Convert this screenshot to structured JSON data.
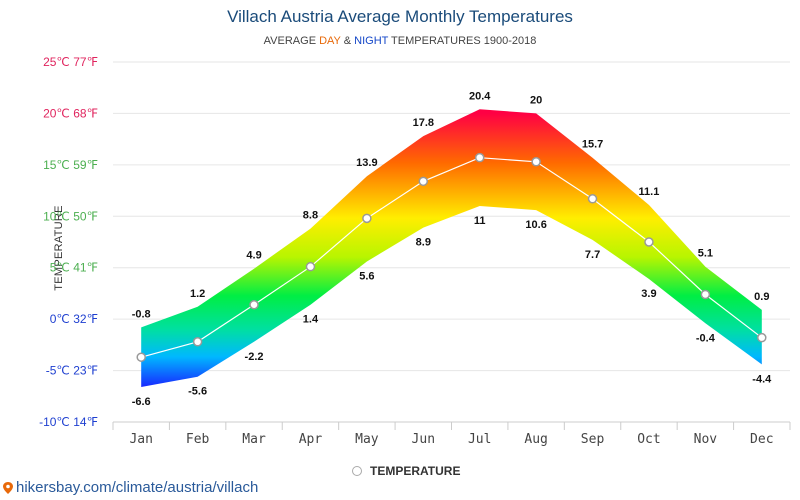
{
  "header": {
    "title": "Villach Austria Average Monthly Temperatures",
    "subtitle_prefix": "AVERAGE ",
    "subtitle_day": "DAY",
    "subtitle_amp": " & ",
    "subtitle_night": "NIGHT",
    "subtitle_suffix": " TEMPERATURES 1900-2018"
  },
  "legend": {
    "label": "TEMPERATURE"
  },
  "footer": {
    "source": "hikersbay.com/climate/austria/villach"
  },
  "chart_data": {
    "type": "area",
    "title": "Villach Austria Average Monthly Temperatures",
    "subtitle": "AVERAGE DAY & NIGHT TEMPERATURES 1900-2018",
    "ylabel": "TEMPERATURE",
    "xlabel": "",
    "categories": [
      "Jan",
      "Feb",
      "Mar",
      "Apr",
      "May",
      "Jun",
      "Jul",
      "Aug",
      "Sep",
      "Oct",
      "Nov",
      "Dec"
    ],
    "ylim": [
      -10,
      25
    ],
    "yticks": [
      {
        "c": 25,
        "label": "25℃ 77℉",
        "color": "#e0245e"
      },
      {
        "c": 20,
        "label": "20℃ 68℉",
        "color": "#e0245e"
      },
      {
        "c": 15,
        "label": "15℃ 59℉",
        "color": "#4caf50"
      },
      {
        "c": 10,
        "label": "10℃ 50℉",
        "color": "#4caf50"
      },
      {
        "c": 5,
        "label": "5℃ 41℉",
        "color": "#4caf50"
      },
      {
        "c": 0,
        "label": "0℃ 32℉",
        "color": "#1e3fd0"
      },
      {
        "c": -5,
        "label": "-5℃ 23℉",
        "color": "#1e3fd0"
      },
      {
        "c": -10,
        "label": "-10℃ 14℉",
        "color": "#1e3fd0"
      }
    ],
    "series": [
      {
        "name": "DAY",
        "values": [
          -0.8,
          1.2,
          4.9,
          8.8,
          13.9,
          17.8,
          20.4,
          20,
          15.7,
          11.1,
          5.1,
          0.9
        ]
      },
      {
        "name": "NIGHT",
        "values": [
          -6.6,
          -5.6,
          -2.2,
          1.4,
          5.6,
          8.9,
          11,
          10.6,
          7.7,
          3.9,
          -0.4,
          -4.4
        ]
      },
      {
        "name": "TEMPERATURE",
        "values": [
          -3.7,
          -2.2,
          1.4,
          5.1,
          9.8,
          13.4,
          15.7,
          15.3,
          11.7,
          7.5,
          2.4,
          -1.8
        ]
      }
    ],
    "grid": true,
    "legend_position": "bottom-center"
  },
  "colors": {
    "grid": "#e6e6e6",
    "line": "#ffffff",
    "marker_stroke": "#999999",
    "label": "#111111",
    "axis_label": "#444444"
  }
}
